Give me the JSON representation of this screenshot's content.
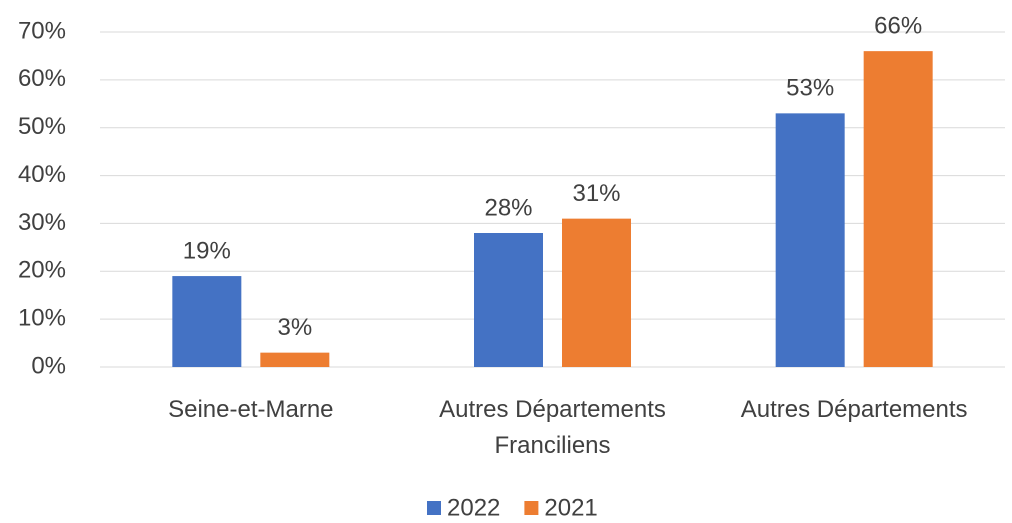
{
  "chart_data": {
    "type": "bar",
    "categories": [
      "Seine-et-Marne",
      "Autres Départements Franciliens",
      "Autres Départements"
    ],
    "series": [
      {
        "name": "2022",
        "color": "#4472c4",
        "values": [
          19,
          28,
          53
        ],
        "value_labels": [
          "19%",
          "28%",
          "53%"
        ]
      },
      {
        "name": "2021",
        "color": "#ed7d31",
        "values": [
          3,
          31,
          66
        ],
        "value_labels": [
          "3%",
          "31%",
          "66%"
        ]
      }
    ],
    "ylim": [
      0,
      70
    ],
    "yticks": [
      {
        "value": 0,
        "label": "0%"
      },
      {
        "value": 10,
        "label": "10%"
      },
      {
        "value": 20,
        "label": "20%"
      },
      {
        "value": 30,
        "label": "30%"
      },
      {
        "value": 40,
        "label": "40%"
      },
      {
        "value": 50,
        "label": "50%"
      },
      {
        "value": 60,
        "label": "60%"
      },
      {
        "value": 70,
        "label": "70%"
      }
    ],
    "grid": true,
    "legend": "bottom"
  }
}
